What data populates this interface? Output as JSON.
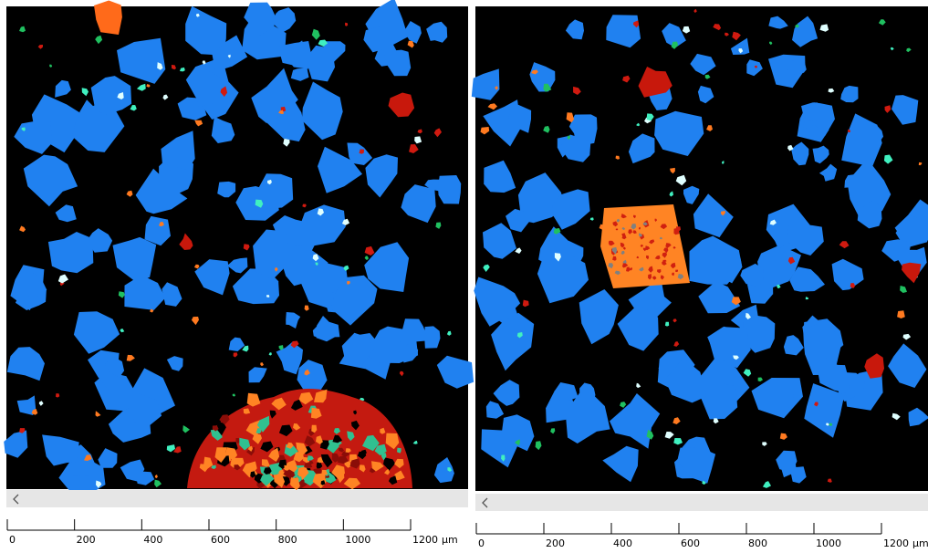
{
  "panels": [
    {
      "scale_bar": {
        "ticks": [
          0,
          200,
          400,
          600,
          800,
          1000,
          1200
        ],
        "unit": "µm"
      }
    },
    {
      "scale_bar": {
        "ticks": [
          0,
          200,
          400,
          600,
          800,
          1000,
          1200
        ],
        "unit": "µm"
      }
    }
  ]
}
